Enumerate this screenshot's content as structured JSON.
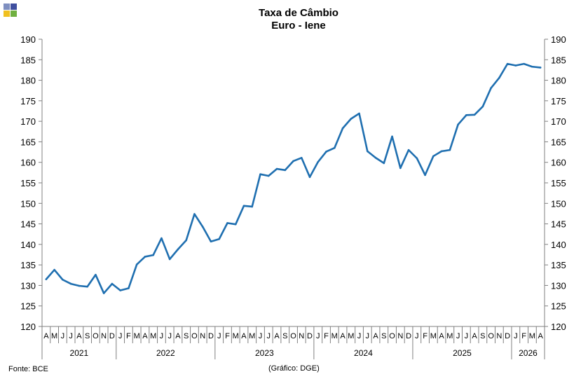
{
  "logo": {
    "icon": "dge-squares-logo",
    "colors": [
      "#7f8fc0",
      "#3f4f9f",
      "#f0c020",
      "#70b040"
    ]
  },
  "footer": {
    "source": "Fonte: BCE",
    "credit": "(Gráfico: DGE)"
  },
  "chart_data": {
    "type": "line",
    "title": "Taxa de Câmbio",
    "subtitle": "Euro - Iene",
    "ylim": [
      120,
      190
    ],
    "yticks": [
      120,
      125,
      130,
      135,
      140,
      145,
      150,
      155,
      160,
      165,
      170,
      175,
      180,
      185,
      190
    ],
    "grid": false,
    "line_color": "#1f6fb0",
    "months": [
      "A",
      "M",
      "J",
      "J",
      "A",
      "S",
      "O",
      "N",
      "D",
      "J",
      "F",
      "M",
      "A",
      "M",
      "J",
      "J",
      "A",
      "S",
      "O",
      "N",
      "D",
      "J",
      "F",
      "M",
      "A",
      "M",
      "J",
      "J",
      "A",
      "S",
      "O",
      "N",
      "D",
      "J",
      "F",
      "M",
      "A",
      "M",
      "J",
      "J",
      "A",
      "S",
      "O",
      "N",
      "D",
      "J",
      "F",
      "M",
      "A",
      "M",
      "J",
      "J",
      "A",
      "S",
      "O",
      "N",
      "D",
      "J",
      "F",
      "M",
      "A"
    ],
    "years": [
      {
        "label": "2021",
        "count": 9
      },
      {
        "label": "2022",
        "count": 12
      },
      {
        "label": "2023",
        "count": 12
      },
      {
        "label": "2024",
        "count": 12
      },
      {
        "label": "2025",
        "count": 12
      },
      {
        "label": "2026",
        "count": 4
      }
    ],
    "values": [
      131.5,
      133.8,
      131.4,
      130.4,
      129.9,
      129.7,
      132.6,
      128.1,
      130.4,
      128.8,
      129.3,
      135.1,
      137.0,
      137.4,
      141.5,
      136.4,
      138.8,
      141.0,
      147.4,
      144.3,
      140.7,
      141.3,
      145.2,
      144.9,
      149.4,
      149.2,
      157.1,
      156.7,
      158.4,
      158.1,
      160.3,
      161.1,
      156.4,
      160.1,
      162.6,
      163.5,
      168.3,
      170.6,
      171.9,
      162.7,
      161.1,
      159.8,
      166.3,
      158.6,
      163.0,
      161.0,
      156.9,
      161.5,
      162.7,
      163.0,
      169.2,
      171.5,
      171.6,
      173.6,
      178.1,
      180.6,
      184.0,
      183.6,
      184.0,
      183.3,
      183.1
    ]
  }
}
